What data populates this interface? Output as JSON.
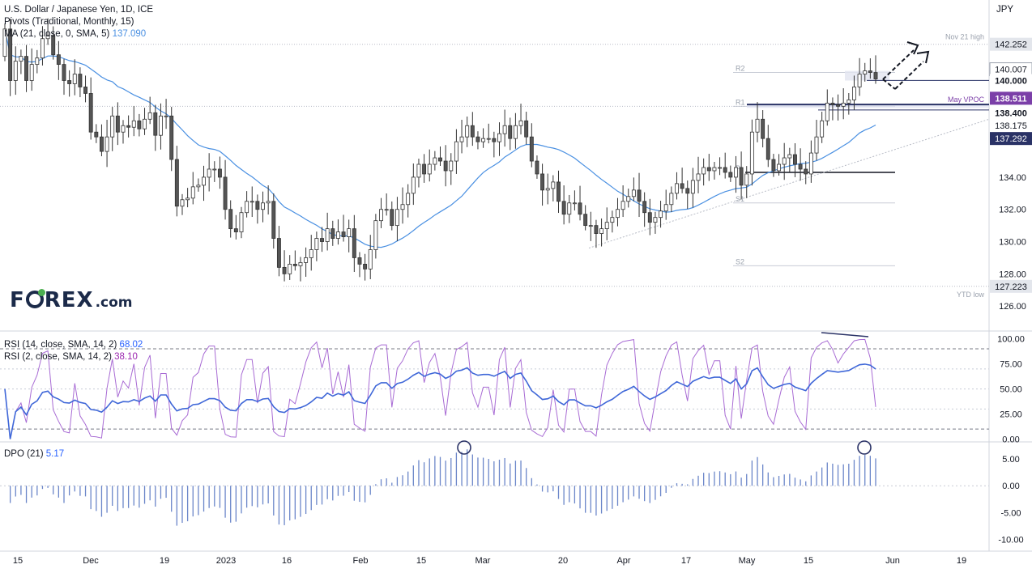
{
  "header": {
    "symbol_line": "U.S. Dollar / Japanese Yen, 1D, ICE",
    "pivots_line": "Pivots (Traditional, Monthly, 15)",
    "ma_line": "MA (21, close, 0, SMA, 5)",
    "ma_value": "137.090",
    "currency": "JPY"
  },
  "rsi_legend": {
    "rsi14_line": "RSI (14, close, SMA, 14, 2)",
    "rsi14_value": "68.02",
    "rsi2_line": "RSI (2, close, SMA, 14, 2)",
    "rsi2_value": "38.10"
  },
  "dpo_legend": {
    "line": "DPO (21)",
    "value": "5.17"
  },
  "logo": {
    "text_before": "F",
    "text_after": "REX",
    "suffix": ".com"
  },
  "colors": {
    "up_candle": "#ffffff",
    "down_candle": "#555555",
    "candle_border": "#333333",
    "ma": "#4a90e2",
    "rsi14": "#3f67d8",
    "rsi2": "#a86bd4",
    "dpo": "#6b86c9",
    "badge_purple": "#7b3fa8",
    "badge_dark": "#131722",
    "badge_navy": "#2a3266",
    "badge_gray": "#e3e6ec"
  },
  "chart_data": [
    {
      "type": "candlestick",
      "title": "U.S. Dollar / Japanese Yen, 1D, ICE",
      "ylabel": "JPY",
      "ylim": [
        124.5,
        145.0
      ],
      "y_ticks": [
        126.0,
        128.0,
        130.0,
        132.0,
        134.0
      ],
      "x_tick_labels": [
        "15",
        "Dec",
        "19",
        "2023",
        "16",
        "Feb",
        "15",
        "Mar",
        "20",
        "Apr",
        "17",
        "May",
        "15",
        "Jun",
        "19"
      ],
      "close": [
        143.2,
        140.0,
        141.2,
        141.5,
        140.0,
        141.0,
        141.4,
        142.6,
        142.8,
        141.6,
        141.0,
        140.0,
        139.8,
        140.4,
        139.6,
        139.2,
        136.8,
        136.5,
        135.6,
        136.5,
        137.8,
        136.8,
        137.2,
        137.1,
        137.5,
        137.0,
        137.6,
        138.0,
        136.6,
        137.8,
        137.8,
        135.1,
        132.2,
        132.6,
        132.7,
        133.4,
        133.5,
        134.0,
        134.5,
        134.5,
        134.0,
        132.0,
        130.8,
        130.6,
        131.8,
        132.5,
        132.5,
        132.0,
        132.4,
        132.5,
        130.2,
        128.4,
        128.0,
        128.6,
        128.5,
        128.7,
        129.0,
        129.5,
        130.2,
        130.0,
        130.8,
        130.2,
        130.6,
        130.3,
        130.8,
        129.0,
        128.6,
        128.3,
        129.5,
        131.3,
        132.0,
        132.0,
        131.0,
        132.0,
        132.3,
        133.0,
        134.0,
        134.8,
        134.2,
        134.8,
        135.2,
        135.0,
        134.4,
        135.0,
        136.2,
        136.5,
        137.2,
        136.5,
        136.2,
        136.4,
        136.4,
        136.2,
        136.7,
        137.2,
        136.4,
        137.2,
        137.5,
        136.5,
        135.0,
        134.2,
        133.2,
        133.3,
        133.7,
        132.5,
        131.7,
        132.4,
        132.4,
        131.7,
        131.0,
        131.0,
        130.5,
        130.8,
        131.2,
        131.5,
        132.0,
        132.5,
        132.8,
        133.2,
        132.5,
        131.8,
        131.2,
        131.5,
        131.9,
        132.3,
        133.0,
        133.6,
        133.3,
        133.0,
        133.8,
        134.2,
        134.6,
        134.4,
        134.6,
        134.6,
        134.3,
        134.0,
        134.6,
        133.5,
        134.2,
        136.8,
        137.6,
        136.4,
        135.1,
        134.4,
        134.8,
        135.2,
        135.4,
        134.8,
        134.5,
        134.2,
        135.5,
        136.5,
        137.5,
        138.6,
        138.5,
        138.4,
        138.6,
        138.8,
        139.6,
        140.4,
        140.6,
        140.5,
        140.1
      ],
      "open": [
        141.5,
        143.2,
        140.0,
        141.2,
        141.5,
        140.0,
        141.0,
        141.4,
        142.6,
        142.8,
        141.6,
        141.0,
        140.0,
        139.8,
        140.4,
        139.6,
        139.2,
        136.8,
        136.5,
        135.6,
        136.5,
        137.8,
        136.8,
        137.2,
        137.1,
        137.5,
        137.0,
        137.6,
        138.0,
        136.6,
        137.8,
        137.8,
        135.1,
        132.2,
        132.6,
        132.7,
        133.4,
        133.5,
        134.0,
        134.5,
        134.5,
        134.0,
        132.0,
        130.8,
        130.6,
        131.8,
        132.5,
        132.5,
        132.0,
        132.4,
        132.5,
        130.2,
        128.4,
        128.0,
        128.6,
        128.5,
        128.7,
        129.0,
        129.5,
        130.2,
        130.0,
        130.8,
        130.2,
        130.6,
        130.3,
        130.8,
        129.0,
        128.6,
        128.3,
        129.5,
        131.3,
        132.0,
        132.0,
        131.0,
        132.0,
        132.3,
        133.0,
        134.0,
        134.8,
        134.2,
        134.8,
        135.2,
        135.0,
        134.4,
        135.0,
        136.2,
        136.5,
        137.2,
        136.5,
        136.2,
        136.4,
        136.4,
        136.2,
        136.7,
        137.2,
        136.4,
        137.2,
        137.5,
        136.5,
        135.0,
        134.2,
        133.2,
        133.3,
        133.7,
        132.5,
        131.7,
        132.4,
        132.4,
        131.7,
        131.0,
        131.0,
        130.5,
        130.8,
        131.2,
        131.5,
        132.0,
        132.5,
        132.8,
        133.2,
        132.5,
        131.8,
        131.2,
        131.5,
        131.9,
        132.3,
        133.0,
        133.6,
        133.3,
        133.0,
        133.8,
        134.2,
        134.6,
        134.4,
        134.6,
        134.6,
        134.3,
        134.0,
        134.6,
        133.5,
        134.2,
        136.8,
        137.6,
        136.4,
        135.1,
        134.4,
        134.8,
        135.2,
        135.4,
        134.8,
        134.5,
        134.2,
        135.5,
        136.5,
        137.5,
        138.6,
        138.5,
        138.4,
        138.6,
        138.8,
        139.6,
        140.4,
        140.6,
        140.5
      ],
      "moving_average": {
        "name": "MA (21, close, 0, SMA, 5)",
        "last": 137.09
      },
      "pivot_levels": [
        {
          "label": "R2",
          "value": 140.5
        },
        {
          "label": "R1",
          "value": 138.4
        },
        {
          "label": "P",
          "value": 134.3
        },
        {
          "label": "S1",
          "value": 132.4
        },
        {
          "label": "S2",
          "value": 128.5
        }
      ],
      "annotations": [
        {
          "label": "Nov 21 high",
          "value": 142.252
        },
        {
          "label": "YTD low",
          "value": 127.223
        },
        {
          "label": "May VPOC",
          "value": 138.511
        }
      ],
      "price_labels": [
        "142.252",
        "140.007",
        "140.000",
        "138.511",
        "138.400",
        "138.175",
        "137.292",
        "127.223"
      ]
    },
    {
      "type": "line",
      "title": "RSI",
      "ylim": [
        -2,
        107
      ],
      "y_ticks": [
        0.0,
        25.0,
        50.0,
        75.0,
        100.0
      ],
      "series": [
        {
          "name": "RSI (14, close, SMA, 14, 2)",
          "last": 68.02
        },
        {
          "name": "RSI (2, close, SMA, 14, 2)",
          "last": 38.1
        }
      ],
      "guides": [
        10,
        30,
        50,
        70,
        90
      ]
    },
    {
      "type": "bar",
      "title": "DPO (21)",
      "ylim": [
        -12,
        8
      ],
      "y_ticks": [
        -10.0,
        -5.0,
        0.0,
        5.0
      ],
      "last": 5.17
    }
  ]
}
